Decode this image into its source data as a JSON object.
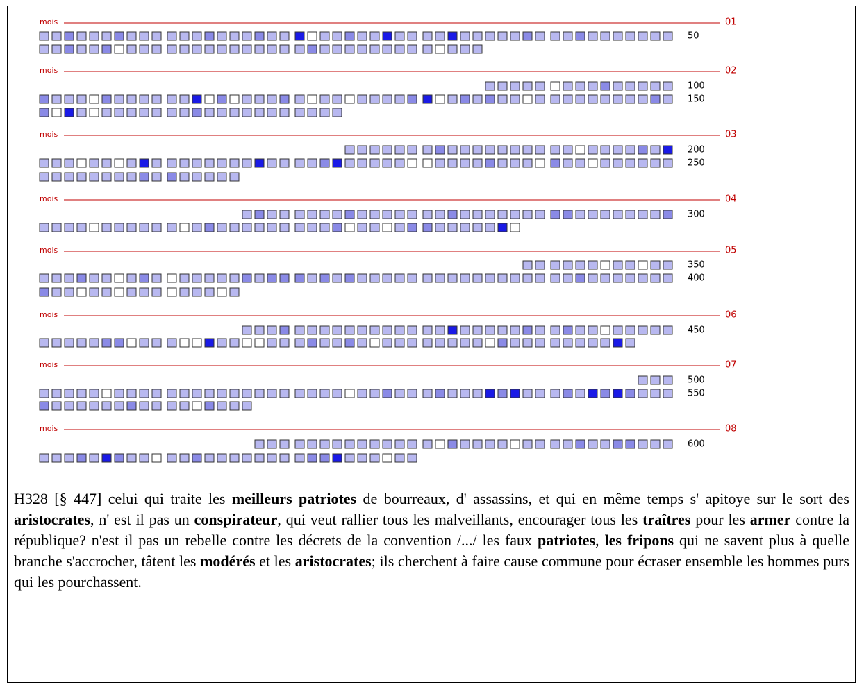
{
  "months": [
    {
      "label": "mois",
      "number": "01",
      "counts": [
        50
      ]
    },
    {
      "label": "mois",
      "number": "02",
      "counts": [
        100,
        150
      ]
    },
    {
      "label": "mois",
      "number": "03",
      "counts": [
        200,
        250
      ]
    },
    {
      "label": "mois",
      "number": "04",
      "counts": [
        300
      ]
    },
    {
      "label": "mois",
      "number": "05",
      "counts": [
        350,
        400
      ]
    },
    {
      "label": "mois",
      "number": "06",
      "counts": [
        450
      ]
    },
    {
      "label": "mois",
      "number": "07",
      "counts": [
        500,
        550
      ]
    },
    {
      "label": "mois",
      "number": "08",
      "counts": [
        600
      ]
    }
  ],
  "paragraph": [
    {
      "text": "H328 [§ 447] celui qui traite les ",
      "bold": false
    },
    {
      "text": "meilleurs patriotes",
      "bold": true
    },
    {
      "text": " de bourreaux, d' assassins, et qui en même temps s' apitoye sur le sort des ",
      "bold": false
    },
    {
      "text": "aristocrates",
      "bold": true
    },
    {
      "text": ", n' est il pas un ",
      "bold": false
    },
    {
      "text": "conspirateur",
      "bold": true
    },
    {
      "text": ", qui veut rallier tous les malveillants, encourager tous les ",
      "bold": false
    },
    {
      "text": "traîtres",
      "bold": true
    },
    {
      "text": " pour les ",
      "bold": false
    },
    {
      "text": "armer",
      "bold": true
    },
    {
      "text": " contre la république? n'est il pas un rebelle contre les décrets de la convention /.../ les faux ",
      "bold": false
    },
    {
      "text": "patriotes",
      "bold": true
    },
    {
      "text": ", ",
      "bold": false
    },
    {
      "text": "les fripons",
      "bold": true
    },
    {
      "text": " qui ne savent plus à quelle branche s'accrocher, tâtent les ",
      "bold": false
    },
    {
      "text": "modérés",
      "bold": true
    },
    {
      "text": " et les ",
      "bold": false
    },
    {
      "text": "aristocrates",
      "bold": true
    },
    {
      "text": "; ils cherchent à faire cause commune pour écraser ensemble les hommes purs qui les pourchassent.",
      "bold": false
    }
  ]
}
